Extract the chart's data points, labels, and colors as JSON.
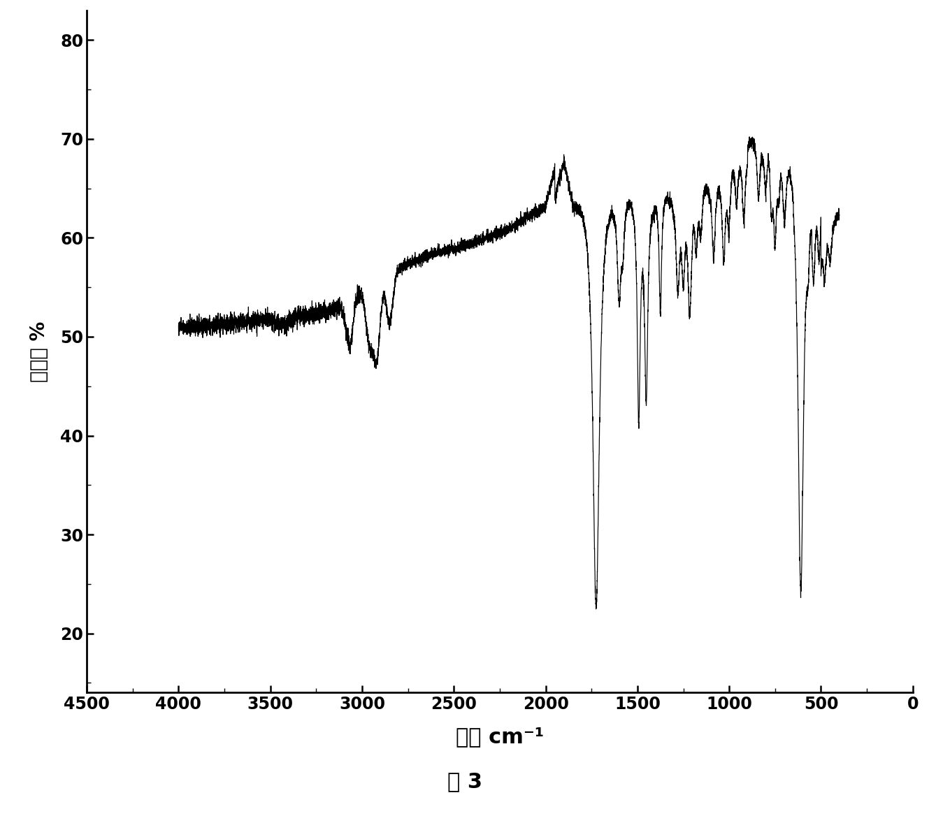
{
  "caption": "图 3",
  "xlabel": "波数 cm⁻¹",
  "ylabel": "透射率 %",
  "xlim": [
    4500,
    0
  ],
  "ylim": [
    14,
    83
  ],
  "yticks": [
    20,
    30,
    40,
    50,
    60,
    70,
    80
  ],
  "xticks": [
    4500,
    4000,
    3500,
    3000,
    2500,
    2000,
    1500,
    1000,
    500,
    0
  ],
  "line_color": "#000000",
  "background_color": "#ffffff",
  "xlabel_fontsize": 22,
  "ylabel_fontsize": 20,
  "tick_fontsize": 17,
  "caption_fontsize": 22
}
